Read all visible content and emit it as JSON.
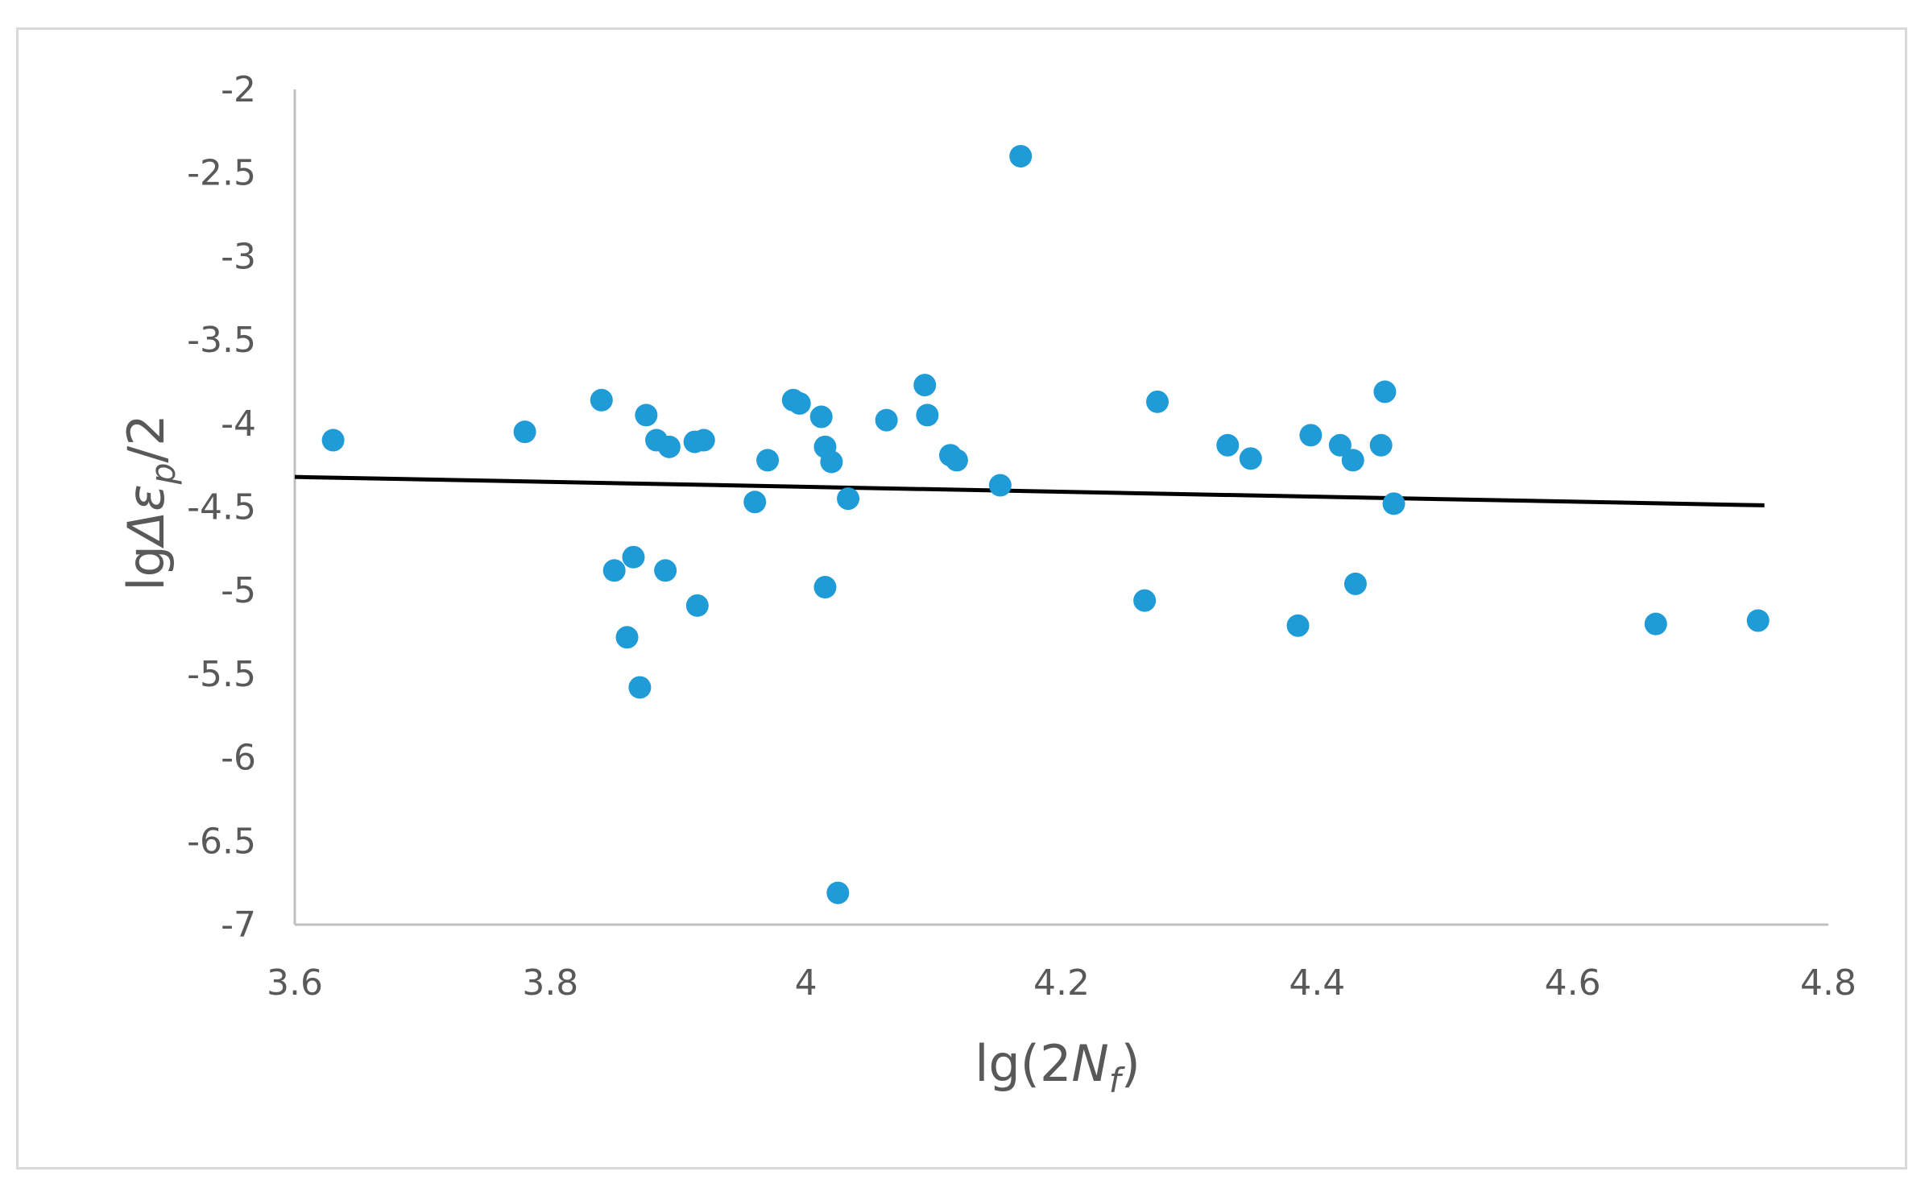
{
  "chart_data": {
    "type": "scatter",
    "xlabel": {
      "base": "lg(2",
      "italic": "N",
      "sub": "f",
      "tail": ")"
    },
    "ylabel": {
      "base": "lg",
      "italic": "Δε",
      "sub": "p",
      "tail": "/2"
    },
    "xlim": [
      3.6,
      4.8
    ],
    "ylim": [
      -7,
      -2
    ],
    "x_ticks": [
      "3.6",
      "3.8",
      "4",
      "4.2",
      "4.4",
      "4.6",
      "4.8"
    ],
    "y_ticks": [
      "-2",
      "-2.5",
      "-3",
      "-3.5",
      "-4",
      "-4.5",
      "-5",
      "-5.5",
      "-6",
      "-6.5",
      "-7"
    ],
    "grid": false,
    "legend": "none",
    "colors": {
      "points": "#1f9bd7",
      "trendline": "#000000",
      "axis": "#bfbfbf",
      "text": "#595959",
      "border": "#d9d9d9"
    },
    "series": [
      {
        "marker": "circle",
        "points": [
          [
            3.63,
            -4.1
          ],
          [
            3.78,
            -4.05
          ],
          [
            3.84,
            -3.86
          ],
          [
            3.85,
            -4.88
          ],
          [
            3.86,
            -5.28
          ],
          [
            3.865,
            -4.8
          ],
          [
            3.87,
            -5.58
          ],
          [
            3.875,
            -3.95
          ],
          [
            3.883,
            -4.1
          ],
          [
            3.89,
            -4.88
          ],
          [
            3.893,
            -4.14
          ],
          [
            3.913,
            -4.11
          ],
          [
            3.915,
            -5.09
          ],
          [
            3.92,
            -4.1
          ],
          [
            3.96,
            -4.47
          ],
          [
            3.97,
            -4.22
          ],
          [
            3.99,
            -3.86
          ],
          [
            3.995,
            -3.88
          ],
          [
            4.012,
            -3.96
          ],
          [
            4.015,
            -4.14
          ],
          [
            4.015,
            -4.98
          ],
          [
            4.02,
            -4.23
          ],
          [
            4.025,
            -6.81
          ],
          [
            4.033,
            -4.45
          ],
          [
            4.063,
            -3.98
          ],
          [
            4.093,
            -3.77
          ],
          [
            4.095,
            -3.95
          ],
          [
            4.113,
            -4.19
          ],
          [
            4.118,
            -4.22
          ],
          [
            4.152,
            -4.37
          ],
          [
            4.168,
            -2.4
          ],
          [
            4.265,
            -5.06
          ],
          [
            4.275,
            -3.87
          ],
          [
            4.33,
            -4.13
          ],
          [
            4.348,
            -4.21
          ],
          [
            4.385,
            -5.21
          ],
          [
            4.395,
            -4.07
          ],
          [
            4.418,
            -4.13
          ],
          [
            4.428,
            -4.22
          ],
          [
            4.43,
            -4.96
          ],
          [
            4.45,
            -4.13
          ],
          [
            4.453,
            -3.81
          ],
          [
            4.46,
            -4.48
          ],
          [
            4.665,
            -5.2
          ],
          [
            4.745,
            -5.18
          ]
        ]
      }
    ],
    "trendline": {
      "type": "linear",
      "x": [
        3.6,
        4.75
      ],
      "y": [
        -4.32,
        -4.49
      ]
    }
  }
}
